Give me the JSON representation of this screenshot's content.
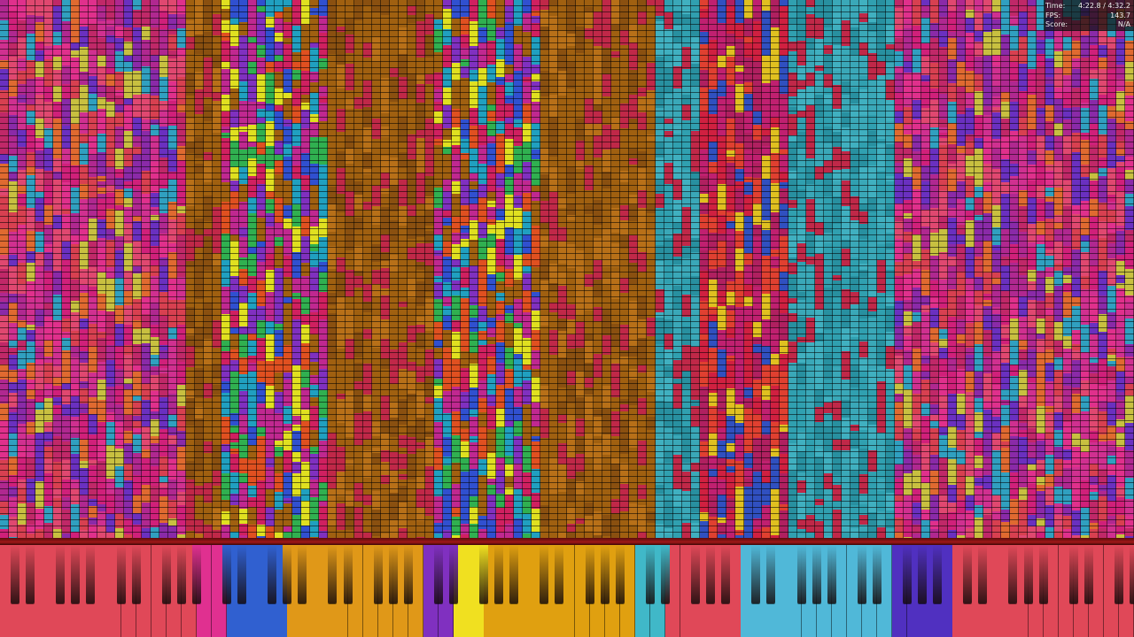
{
  "stats": {
    "rows": [
      [
        "Time:",
        "4:22.8 / 4:32.2"
      ],
      [
        "FPS:",
        "143.7"
      ],
      [
        "Score:",
        "N/A"
      ]
    ]
  }
}
